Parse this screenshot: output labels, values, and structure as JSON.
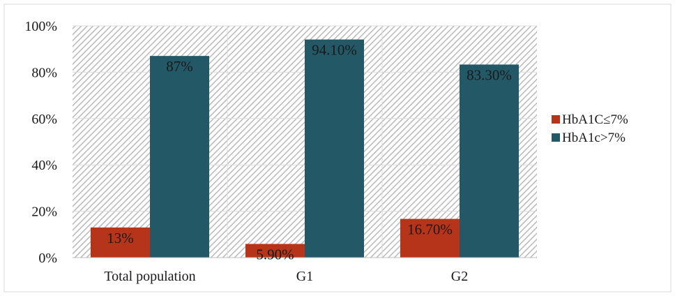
{
  "chart_data": {
    "type": "bar",
    "categories": [
      "Total population",
      "G1",
      "G2"
    ],
    "series": [
      {
        "name": "HbA1C≤7%",
        "values": [
          13,
          5.9,
          16.7
        ],
        "labels": [
          "13%",
          "5.90%",
          "16.70%"
        ],
        "color": "#b5341a"
      },
      {
        "name": "HbA1c>7%",
        "values": [
          87,
          94.1,
          83.3
        ],
        "labels": [
          "87%",
          "94.10%",
          "83.30%"
        ],
        "color": "#235866"
      }
    ],
    "y_ticks": [
      "0%",
      "20%",
      "40%",
      "60%",
      "80%",
      "100%"
    ],
    "ylim": [
      0,
      100
    ],
    "grid": true,
    "legend_position": "right",
    "title": "",
    "xlabel": "",
    "ylabel": ""
  }
}
